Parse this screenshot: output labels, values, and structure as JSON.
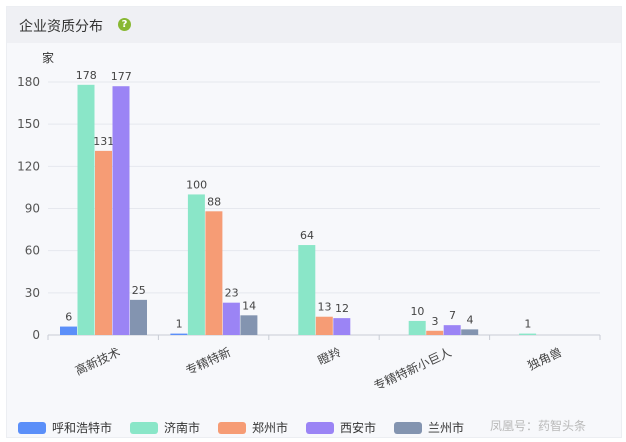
{
  "header": {
    "title": "企业资质分布",
    "help_icon": "question-circle-icon",
    "help_glyph": "?"
  },
  "chart_data": {
    "type": "bar",
    "ylabel": "家",
    "ylim": [
      0,
      180
    ],
    "yticks": [
      0,
      30,
      60,
      90,
      120,
      150,
      180
    ],
    "categories": [
      "高新技术",
      "专精特新",
      "瞪羚",
      "专精特新小巨人",
      "独角兽"
    ],
    "series": [
      {
        "name": "呼和浩特市",
        "color": "#5b8ff9",
        "values": [
          6,
          1,
          null,
          null,
          null
        ]
      },
      {
        "name": "济南市",
        "color": "#8ae6c8",
        "values": [
          178,
          100,
          64,
          10,
          1
        ]
      },
      {
        "name": "郑州市",
        "color": "#f69c75",
        "values": [
          131,
          88,
          13,
          3,
          null
        ]
      },
      {
        "name": "西安市",
        "color": "#9b84f5",
        "values": [
          177,
          23,
          12,
          7,
          null
        ]
      },
      {
        "name": "兰州市",
        "color": "#8394b0",
        "values": [
          25,
          14,
          null,
          4,
          null
        ]
      }
    ],
    "legend_position": "bottom"
  },
  "watermark": "凤凰号：药智头条"
}
